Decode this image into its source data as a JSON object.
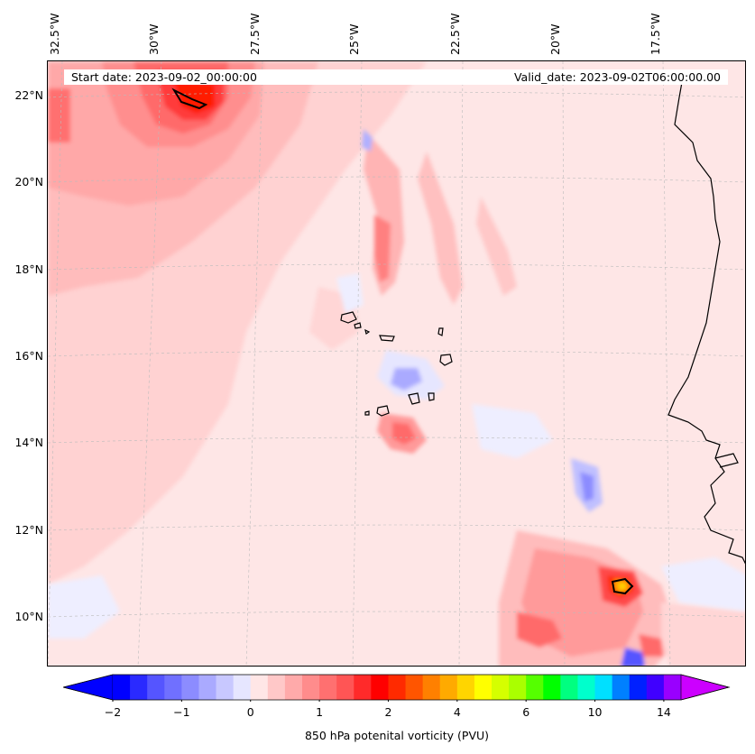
{
  "header": {
    "start_date": "Start date: 2023-09-02_00:00:00",
    "valid_date": "Valid_date: 2023-09-02T06:00:00.00"
  },
  "longitude_labels": [
    "32.5°W",
    "30°W",
    "27.5°W",
    "25°W",
    "22.5°W",
    "20°W",
    "17.5°W"
  ],
  "latitude_labels": [
    "22°N",
    "20°N",
    "18°N",
    "16°N",
    "14°N",
    "12°N",
    "10°N"
  ],
  "colorbar": {
    "title": "850 hPa potenital vorticity (PVU)",
    "tick_labels": [
      "−2",
      "−1",
      "0",
      "1",
      "2",
      "4",
      "6",
      "10",
      "14"
    ],
    "colors": [
      "#0000ff",
      "#2a2aff",
      "#5555ff",
      "#7070ff",
      "#8c8cff",
      "#aaaaff",
      "#c8c8ff",
      "#e6e6ff",
      "#ffe6e6",
      "#ffc8c8",
      "#ffaaaa",
      "#ff8c8c",
      "#ff7070",
      "#ff5555",
      "#ff2a2a",
      "#ff0000",
      "#ff2a00",
      "#ff5500",
      "#ff8000",
      "#ffaa00",
      "#ffd500",
      "#ffff00",
      "#d5ff00",
      "#aaff00",
      "#55ff00",
      "#00ff00",
      "#00ff80",
      "#00ffcc",
      "#00e0ff",
      "#0080ff",
      "#0020ff",
      "#4000ff",
      "#9900ff"
    ],
    "under_color": "#0000ff",
    "over_color": "#cc00ff"
  },
  "legend_colors": {
    "background_field": "#fee6e6",
    "coastline": "#000000",
    "gridline": "#bbbbbb"
  }
}
